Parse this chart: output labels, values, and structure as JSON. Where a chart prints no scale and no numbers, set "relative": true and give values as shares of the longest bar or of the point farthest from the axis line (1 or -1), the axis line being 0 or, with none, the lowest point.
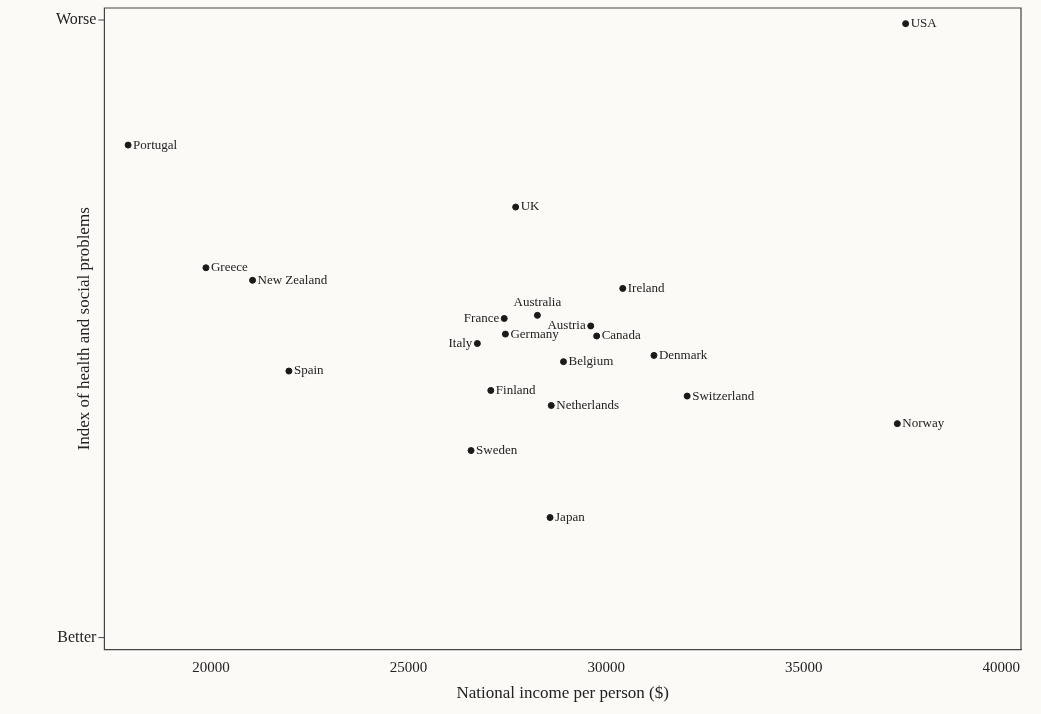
{
  "chart_data": {
    "type": "scatter",
    "xlabel": "National income per person ($)",
    "ylabel": "Index of health and social problems",
    "x": [
      37580,
      17900,
      27710,
      19870,
      21050,
      30420,
      28260,
      27420,
      29610,
      27450,
      29760,
      26740,
      31210,
      28920,
      21970,
      27080,
      32050,
      28610,
      37370,
      26580,
      28580
    ],
    "values": [
      1,
      0.806,
      0.707,
      0.61,
      0.59,
      0.577,
      0.534,
      0.529,
      0.517,
      0.504,
      0.501,
      0.489,
      0.47,
      0.46,
      0.445,
      0.414,
      0.405,
      0.39,
      0.361,
      0.318,
      0.211
    ],
    "relative": true,
    "color": "#1a1a1a",
    "marker": "circle",
    "xlim": [
      17300,
      40500
    ],
    "xticks": [
      20000,
      25000,
      30000,
      35000,
      40000
    ],
    "grid": false,
    "legend": false,
    "annotations": [
      "Worse",
      "Better",
      {
        "text": "USA",
        "x": 37580,
        "y": 1
      },
      {
        "text": "Portugal",
        "x": 17900,
        "y": 0.806
      },
      {
        "text": "UK",
        "x": 27710,
        "y": 0.707
      },
      {
        "text": "Greece",
        "x": 19870,
        "y": 0.61
      },
      {
        "text": "New Zealand",
        "x": 21050,
        "y": 0.59
      },
      {
        "text": "Ireland",
        "x": 30420,
        "y": 0.577
      },
      {
        "text": "Australia",
        "x": 28260,
        "y": 0.534
      },
      {
        "text": "France",
        "x": 27420,
        "y": 0.529
      },
      {
        "text": "Austria",
        "x": 29610,
        "y": 0.517
      },
      {
        "text": "Germany",
        "x": 27450,
        "y": 0.504
      },
      {
        "text": "Canada",
        "x": 29760,
        "y": 0.501
      },
      {
        "text": "Italy",
        "x": 26740,
        "y": 0.489
      },
      {
        "text": "Denmark",
        "x": 31210,
        "y": 0.47
      },
      {
        "text": "Belgium",
        "x": 28920,
        "y": 0.46
      },
      {
        "text": "Spain",
        "x": 21970,
        "y": 0.445
      },
      {
        "text": "Finland",
        "x": 27080,
        "y": 0.414
      },
      {
        "text": "Switzerland",
        "x": 32050,
        "y": 0.405
      },
      {
        "text": "Netherlands",
        "x": 28610,
        "y": 0.39
      },
      {
        "text": "Norway",
        "x": 37370,
        "y": 0.361
      },
      {
        "text": "Sweden",
        "x": 26580,
        "y": 0.318
      },
      {
        "text": "Japan",
        "x": 28580,
        "y": 0.211
      }
    ]
  }
}
